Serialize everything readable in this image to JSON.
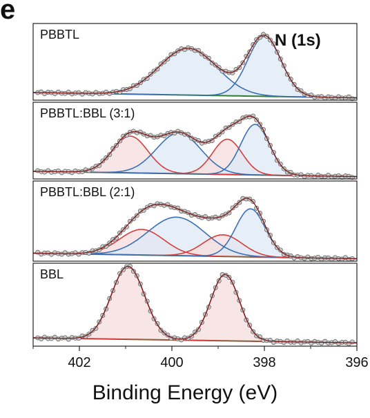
{
  "panel_label": "e",
  "colors": {
    "envelope": "#7a1a1a",
    "fit_blue": "#3a6fb5",
    "fit_red": "#d63c3c",
    "baseline": "#2e7d32",
    "fill_blue": "#dde8f5",
    "fill_red": "#f6dedd",
    "marker_fill": "#c9c9c9",
    "marker_edge": "#555555"
  },
  "chart_data": {
    "type": "line",
    "xlabel": "Binding Energy (eV)",
    "xlim": [
      403,
      396
    ],
    "xticks": [
      402,
      400,
      398,
      396
    ],
    "x_tick_labels": [
      "402",
      "400",
      "398",
      "396"
    ],
    "annotation": "N (1s)",
    "panels": [
      {
        "label": "PBBTL",
        "baseline": [
          0.1,
          0.03
        ],
        "components": [
          {
            "color": "blue",
            "center": 399.65,
            "sigma": 0.62,
            "amplitude": 0.61
          },
          {
            "color": "blue",
            "center": 398.0,
            "sigma": 0.36,
            "amplitude": 0.78
          }
        ]
      },
      {
        "label": "PBBTL:BBL (3:1)",
        "baseline": [
          0.1,
          0.03
        ],
        "components": [
          {
            "color": "red",
            "center": 400.9,
            "sigma": 0.38,
            "amplitude": 0.48
          },
          {
            "color": "blue",
            "center": 399.85,
            "sigma": 0.48,
            "amplitude": 0.53
          },
          {
            "color": "red",
            "center": 398.8,
            "sigma": 0.32,
            "amplitude": 0.46
          },
          {
            "color": "blue",
            "center": 398.2,
            "sigma": 0.31,
            "amplitude": 0.66
          }
        ]
      },
      {
        "label": "PBBTL:BBL (2:1)",
        "baseline": [
          0.1,
          0.03
        ],
        "components": [
          {
            "color": "red",
            "center": 400.65,
            "sigma": 0.48,
            "amplitude": 0.32
          },
          {
            "color": "blue",
            "center": 399.9,
            "sigma": 0.62,
            "amplitude": 0.48
          },
          {
            "color": "red",
            "center": 398.9,
            "sigma": 0.42,
            "amplitude": 0.27
          },
          {
            "color": "blue",
            "center": 398.3,
            "sigma": 0.32,
            "amplitude": 0.6
          }
        ]
      },
      {
        "label": "BBL",
        "baseline": [
          0.1,
          0.04
        ],
        "components": [
          {
            "color": "red",
            "center": 400.95,
            "sigma": 0.36,
            "amplitude": 0.88
          },
          {
            "color": "red",
            "center": 398.85,
            "sigma": 0.31,
            "amplitude": 0.8
          }
        ]
      }
    ]
  }
}
